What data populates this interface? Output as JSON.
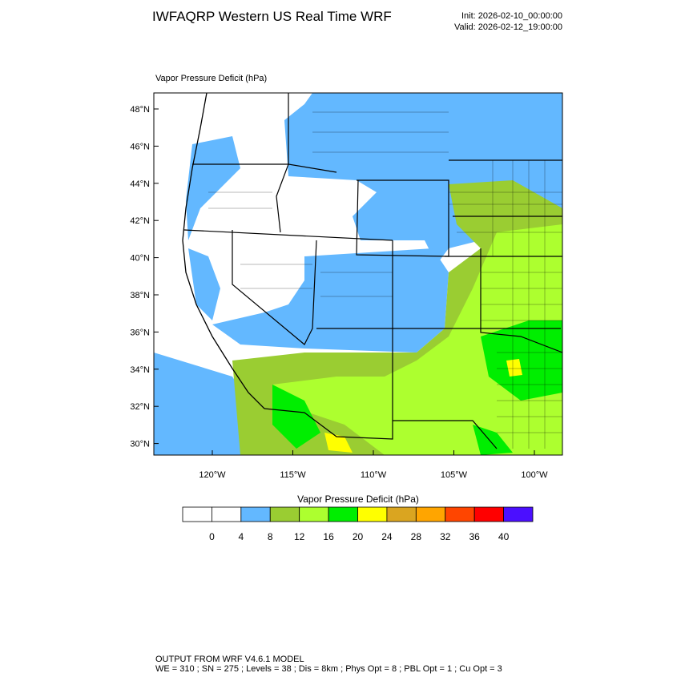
{
  "header": {
    "title": "IWFAQRP Western US Real Time WRF",
    "init": "Init: 2026-02-10_00:00:00",
    "valid": "Valid: 2026-02-12_19:00:00"
  },
  "map": {
    "title": "Vapor Pressure Deficit   (hPa)",
    "lat_ticks": [
      {
        "value": 48,
        "label": "48°N"
      },
      {
        "value": 46,
        "label": "46°N"
      },
      {
        "value": 44,
        "label": "44°N"
      },
      {
        "value": 42,
        "label": "42°N"
      },
      {
        "value": 40,
        "label": "40°N"
      },
      {
        "value": 38,
        "label": "38°N"
      },
      {
        "value": 36,
        "label": "36°N"
      },
      {
        "value": 34,
        "label": "34°N"
      },
      {
        "value": 32,
        "label": "32°N"
      },
      {
        "value": 30,
        "label": "30°N"
      }
    ],
    "lon_ticks": [
      {
        "value": -120,
        "label": "120°W"
      },
      {
        "value": -115,
        "label": "115°W"
      },
      {
        "value": -110,
        "label": "110°W"
      },
      {
        "value": -105,
        "label": "105°W"
      },
      {
        "value": -100,
        "label": "100°W"
      }
    ]
  },
  "colorbar": {
    "title": "Vapor Pressure Deficit  (hPa)",
    "colors": [
      "#ffffff",
      "#ffffff",
      "#63b8ff",
      "#9acd32",
      "#adff2f",
      "#00ee00",
      "#ffff00",
      "#daa520",
      "#ffa500",
      "#ff4500",
      "#ff0000",
      "#4b0fff"
    ],
    "levels": [
      0,
      4,
      8,
      12,
      16,
      20,
      24,
      28,
      32,
      36,
      40
    ]
  },
  "footer": {
    "line1": "OUTPUT FROM WRF V4.6.1 MODEL",
    "line2": "WE = 310 ; SN = 275 ; Levels = 38 ; Dis = 8km ; Phys Opt = 8 ; PBL Opt = 1 ; Cu Opt = 3"
  }
}
